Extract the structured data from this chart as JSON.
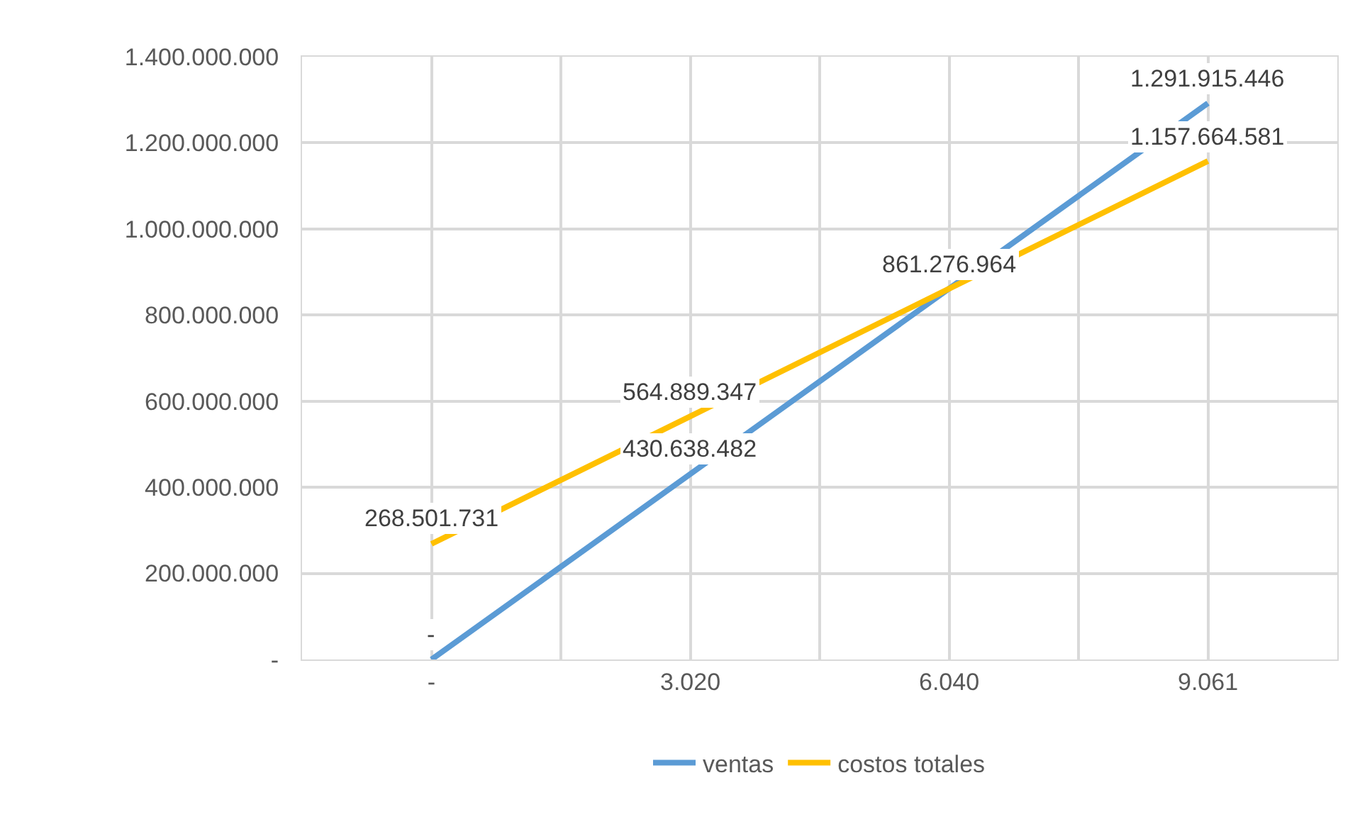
{
  "chart_data": {
    "type": "line",
    "categories": [
      "-",
      "3.020",
      "6.040",
      "9.061"
    ],
    "series": [
      {
        "name": "ventas",
        "color": "#5b9bd5",
        "values": [
          0,
          430638482,
          861276964,
          1291915446
        ],
        "value_labels": [
          "-",
          "430.638.482",
          "861.276.964",
          "1.291.915.446"
        ]
      },
      {
        "name": "costos totales",
        "color": "#ffc000",
        "values": [
          268501731,
          564889347,
          861276964,
          1157664581
        ],
        "value_labels": [
          "268.501.731",
          "564.889.347",
          null,
          "1.157.664.581"
        ]
      }
    ],
    "ylim": [
      0,
      1400000000
    ],
    "yticks": [
      {
        "value": 0,
        "label": "-"
      },
      {
        "value": 200000000,
        "label": "200.000.000"
      },
      {
        "value": 400000000,
        "label": "400.000.000"
      },
      {
        "value": 600000000,
        "label": "600.000.000"
      },
      {
        "value": 800000000,
        "label": "800.000.000"
      },
      {
        "value": 1000000000,
        "label": "1.000.000.000"
      },
      {
        "value": 1200000000,
        "label": "1.200.000.000"
      },
      {
        "value": 1400000000,
        "label": "1.400.000.000"
      }
    ],
    "grid": true,
    "legend": "bottom",
    "marker": "none",
    "line_style": "solid"
  }
}
